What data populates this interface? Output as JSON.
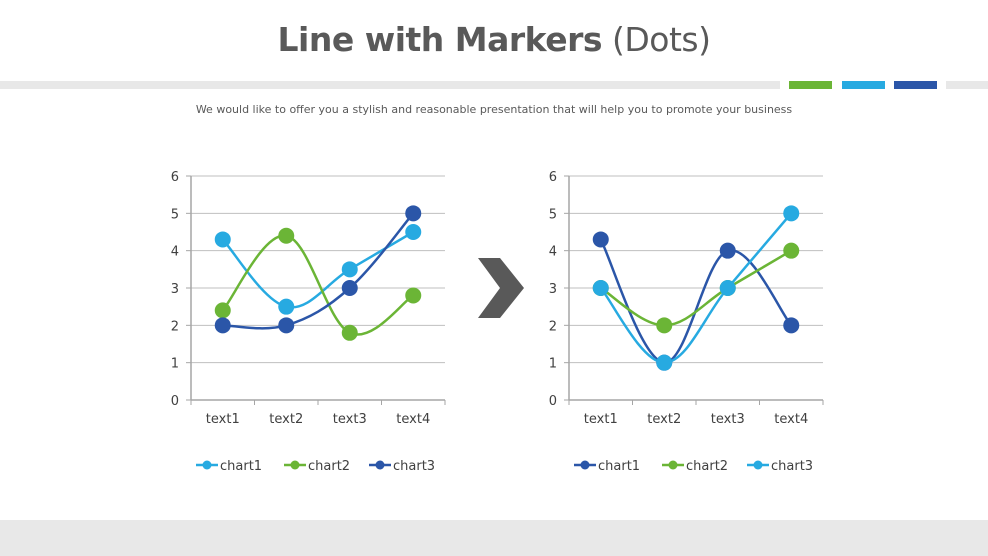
{
  "header": {
    "title_bold": "Line with Markers",
    "title_light": "(Dots)",
    "subtitle": "We would like to offer you a stylish and reasonable presentation that will help you to promote your business"
  },
  "colors": {
    "green": "#6bb536",
    "light_blue": "#27aae1",
    "dark_blue": "#2b56a8",
    "gray_band": "#e8e8e8",
    "title_text": "#595959",
    "arrow": "#595959"
  },
  "decor": {
    "accent_bars": [
      "#6bb536",
      "#27aae1",
      "#2b56a8"
    ],
    "arrow_icon": "chevron-right"
  },
  "chart_data": [
    {
      "type": "line",
      "title": "",
      "xlabel": "",
      "ylabel": "",
      "categories": [
        "text1",
        "text2",
        "text3",
        "text4"
      ],
      "ylim": [
        0,
        6
      ],
      "yticks": [
        0,
        1,
        2,
        3,
        4,
        5,
        6
      ],
      "grid": true,
      "smooth": true,
      "legend_position": "bottom",
      "series": [
        {
          "name": "chart1",
          "color": "#27aae1",
          "values": [
            4.3,
            2.5,
            3.5,
            4.5
          ]
        },
        {
          "name": "chart2",
          "color": "#6bb536",
          "values": [
            2.4,
            4.4,
            1.8,
            2.8
          ]
        },
        {
          "name": "chart3",
          "color": "#2b56a8",
          "values": [
            2.0,
            2.0,
            3.0,
            5.0
          ]
        }
      ]
    },
    {
      "type": "line",
      "title": "",
      "xlabel": "",
      "ylabel": "",
      "categories": [
        "text1",
        "text2",
        "text3",
        "text4"
      ],
      "ylim": [
        0,
        6
      ],
      "yticks": [
        0,
        1,
        2,
        3,
        4,
        5,
        6
      ],
      "grid": true,
      "smooth": true,
      "legend_position": "bottom",
      "series": [
        {
          "name": "chart1",
          "color": "#2b56a8",
          "values": [
            4.3,
            1.0,
            4.0,
            2.0
          ]
        },
        {
          "name": "chart2",
          "color": "#6bb536",
          "values": [
            3.0,
            2.0,
            3.0,
            4.0
          ]
        },
        {
          "name": "chart3",
          "color": "#27aae1",
          "values": [
            3.0,
            1.0,
            3.0,
            5.0
          ]
        }
      ]
    }
  ]
}
